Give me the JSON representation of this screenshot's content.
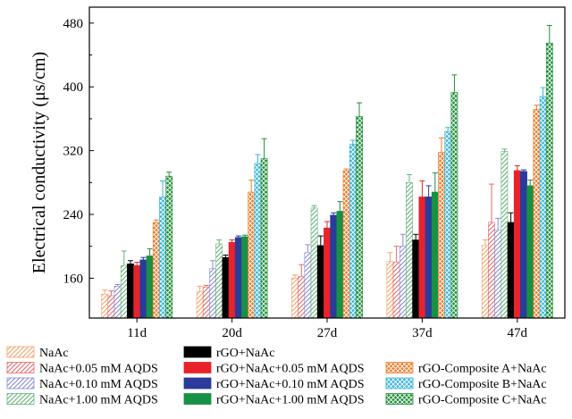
{
  "chart_data": {
    "type": "bar",
    "title": "",
    "xlabel": "",
    "ylabel": "Electrical conductivity (μs/cm)",
    "ylim": [
      110,
      500
    ],
    "yticks": [
      160,
      240,
      320,
      400,
      480
    ],
    "categories": [
      "11d",
      "20d",
      "27d",
      "37d",
      "47d"
    ],
    "legend_position": "bottom",
    "series": [
      {
        "name": "NaAc",
        "color": "#f4a46a",
        "pattern": "hatch-fwd",
        "values": [
          140,
          143,
          160,
          181,
          201
        ],
        "errors": [
          5,
          7,
          4,
          11,
          7
        ]
      },
      {
        "name": "NaAc+0.05 mM AQDS",
        "color": "#e46a6a",
        "pattern": "hatch-fwd",
        "values": [
          138,
          149,
          162,
          180,
          230
        ],
        "errors": [
          6,
          2,
          15,
          20,
          48
        ]
      },
      {
        "name": "NaAc+0.10 mM AQDS",
        "color": "#8a8ad6",
        "pattern": "hatch-fwd",
        "values": [
          150,
          172,
          192,
          200,
          220
        ],
        "errors": [
          2,
          10,
          10,
          15,
          15
        ]
      },
      {
        "name": "NaAc+1.00 mM AQDS",
        "color": "#66b27a",
        "pattern": "hatch-fwd",
        "values": [
          176,
          203,
          248,
          280,
          319
        ],
        "errors": [
          18,
          5,
          3,
          10,
          3
        ]
      },
      {
        "name": "rGO+NaAc",
        "color": "#000000",
        "pattern": "solid",
        "values": [
          178,
          186,
          201,
          208,
          230
        ],
        "errors": [
          4,
          3,
          12,
          7,
          12
        ]
      },
      {
        "name": "rGO+NaAc+0.05 mM AQDS",
        "color": "#e8232a",
        "pattern": "solid",
        "values": [
          176,
          205,
          223,
          262,
          295
        ],
        "errors": [
          4,
          3,
          8,
          20,
          6
        ]
      },
      {
        "name": "rGO+NaAc+0.10 mM AQDS",
        "color": "#2a3b9b",
        "pattern": "solid",
        "values": [
          183,
          211,
          239,
          262,
          294
        ],
        "errors": [
          3,
          2,
          3,
          14,
          2
        ]
      },
      {
        "name": "rGO+NaAc+1.00 mM AQDS",
        "color": "#169145",
        "pattern": "solid",
        "values": [
          188,
          212,
          244,
          268,
          276
        ],
        "errors": [
          9,
          2,
          12,
          24,
          7
        ]
      },
      {
        "name": "rGO-Composite A+NaAc",
        "color": "#ec7d2b",
        "pattern": "crosshatch",
        "values": [
          230,
          268,
          295,
          318,
          372
        ],
        "errors": [
          3,
          15,
          2,
          18,
          5
        ]
      },
      {
        "name": "rGO-Composite B+NaAc",
        "color": "#3cb4d8",
        "pattern": "crosshatch",
        "values": [
          262,
          304,
          328,
          344,
          388
        ],
        "errors": [
          20,
          11,
          5,
          5,
          11
        ]
      },
      {
        "name": "rGO-Composite C+NaAc",
        "color": "#1f8f3a",
        "pattern": "crosshatch",
        "values": [
          288,
          310,
          363,
          393,
          455
        ],
        "errors": [
          5,
          25,
          17,
          22,
          22
        ]
      }
    ]
  }
}
